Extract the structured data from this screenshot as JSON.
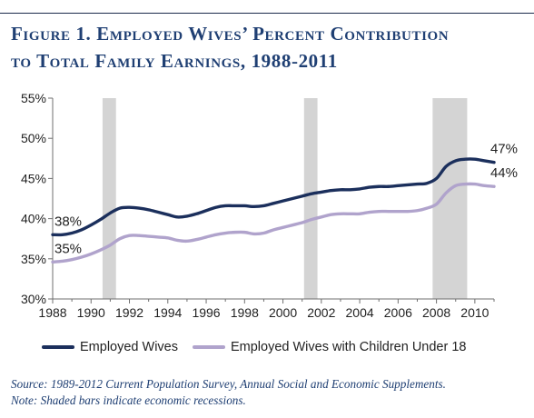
{
  "figure": {
    "title_line1": "Figure 1. Employed Wives’ Percent Contribution",
    "title_line2": "to Total Family Earnings, 1988-2011"
  },
  "colors": {
    "title": "#1f3f73",
    "wives": "#1b2f5c",
    "wives_children": "#b0a3cc",
    "recession": "#d4d4d4",
    "axis": "#6f6f6f"
  },
  "chart_data": {
    "type": "line",
    "title": "Employed Wives’ Percent Contribution to Total Family Earnings, 1988-2011",
    "xlabel": "",
    "ylabel": "",
    "xlim": [
      1988,
      2011
    ],
    "ylim": [
      30,
      55
    ],
    "x_ticks": [
      "1988",
      "1990",
      "1992",
      "1994",
      "1996",
      "1998",
      "2000",
      "2002",
      "2004",
      "2006",
      "2008",
      "2010"
    ],
    "y_ticks": [
      "30%",
      "35%",
      "40%",
      "45%",
      "50%",
      "55%"
    ],
    "grid": false,
    "legend_position": "bottom",
    "recessions": [
      [
        1990.6,
        1991.3
      ],
      [
        2001.1,
        2001.8
      ],
      [
        2007.8,
        2009.6
      ]
    ],
    "series": [
      {
        "name": "Employed Wives",
        "x": [
          1988,
          1988.5,
          1989,
          1989.5,
          1990,
          1990.5,
          1991,
          1991.5,
          1992,
          1992.5,
          1993,
          1993.5,
          1994,
          1994.5,
          1995,
          1995.5,
          1996,
          1996.5,
          1997,
          1997.5,
          1998,
          1998.5,
          1999,
          1999.5,
          2000,
          2000.5,
          2001,
          2001.5,
          2002,
          2002.5,
          2003,
          2003.5,
          2004,
          2004.5,
          2005,
          2005.5,
          2006,
          2006.5,
          2007,
          2007.5,
          2008,
          2008.5,
          2009,
          2009.5,
          2010,
          2010.5,
          2011
        ],
        "y": [
          38.0,
          38.0,
          38.2,
          38.6,
          39.2,
          39.9,
          40.7,
          41.3,
          41.4,
          41.3,
          41.1,
          40.8,
          40.5,
          40.2,
          40.3,
          40.6,
          41.0,
          41.4,
          41.6,
          41.6,
          41.6,
          41.5,
          41.6,
          41.9,
          42.2,
          42.5,
          42.8,
          43.1,
          43.3,
          43.5,
          43.6,
          43.6,
          43.7,
          43.9,
          44.0,
          44.0,
          44.1,
          44.2,
          44.3,
          44.4,
          45.0,
          46.5,
          47.2,
          47.4,
          47.4,
          47.2,
          47.0
        ],
        "end_label": "47%",
        "start_label": "38%"
      },
      {
        "name": "Employed Wives with Children Under 18",
        "x": [
          1988,
          1988.5,
          1989,
          1989.5,
          1990,
          1990.5,
          1991,
          1991.5,
          1992,
          1992.5,
          1993,
          1993.5,
          1994,
          1994.5,
          1995,
          1995.5,
          1996,
          1996.5,
          1997,
          1997.5,
          1998,
          1998.5,
          1999,
          1999.5,
          2000,
          2000.5,
          2001,
          2001.5,
          2002,
          2002.5,
          2003,
          2003.5,
          2004,
          2004.5,
          2005,
          2005.5,
          2006,
          2006.5,
          2007,
          2007.5,
          2008,
          2008.5,
          2009,
          2009.5,
          2010,
          2010.5,
          2011
        ],
        "y": [
          34.6,
          34.7,
          34.9,
          35.2,
          35.6,
          36.1,
          36.7,
          37.5,
          37.9,
          37.9,
          37.8,
          37.7,
          37.6,
          37.3,
          37.2,
          37.4,
          37.7,
          38.0,
          38.2,
          38.3,
          38.3,
          38.1,
          38.2,
          38.6,
          38.9,
          39.2,
          39.5,
          39.9,
          40.2,
          40.5,
          40.6,
          40.6,
          40.6,
          40.8,
          40.9,
          40.9,
          40.9,
          40.9,
          41.0,
          41.3,
          41.8,
          43.2,
          44.1,
          44.3,
          44.3,
          44.1,
          44.0
        ],
        "end_label": "44%",
        "start_label": "35%"
      }
    ]
  },
  "source": {
    "line1": "Source: 1989-2012 Current Population Survey, Annual Social and Economic Supplements.",
    "line2": "Note: Shaded bars indicate economic recessions."
  }
}
